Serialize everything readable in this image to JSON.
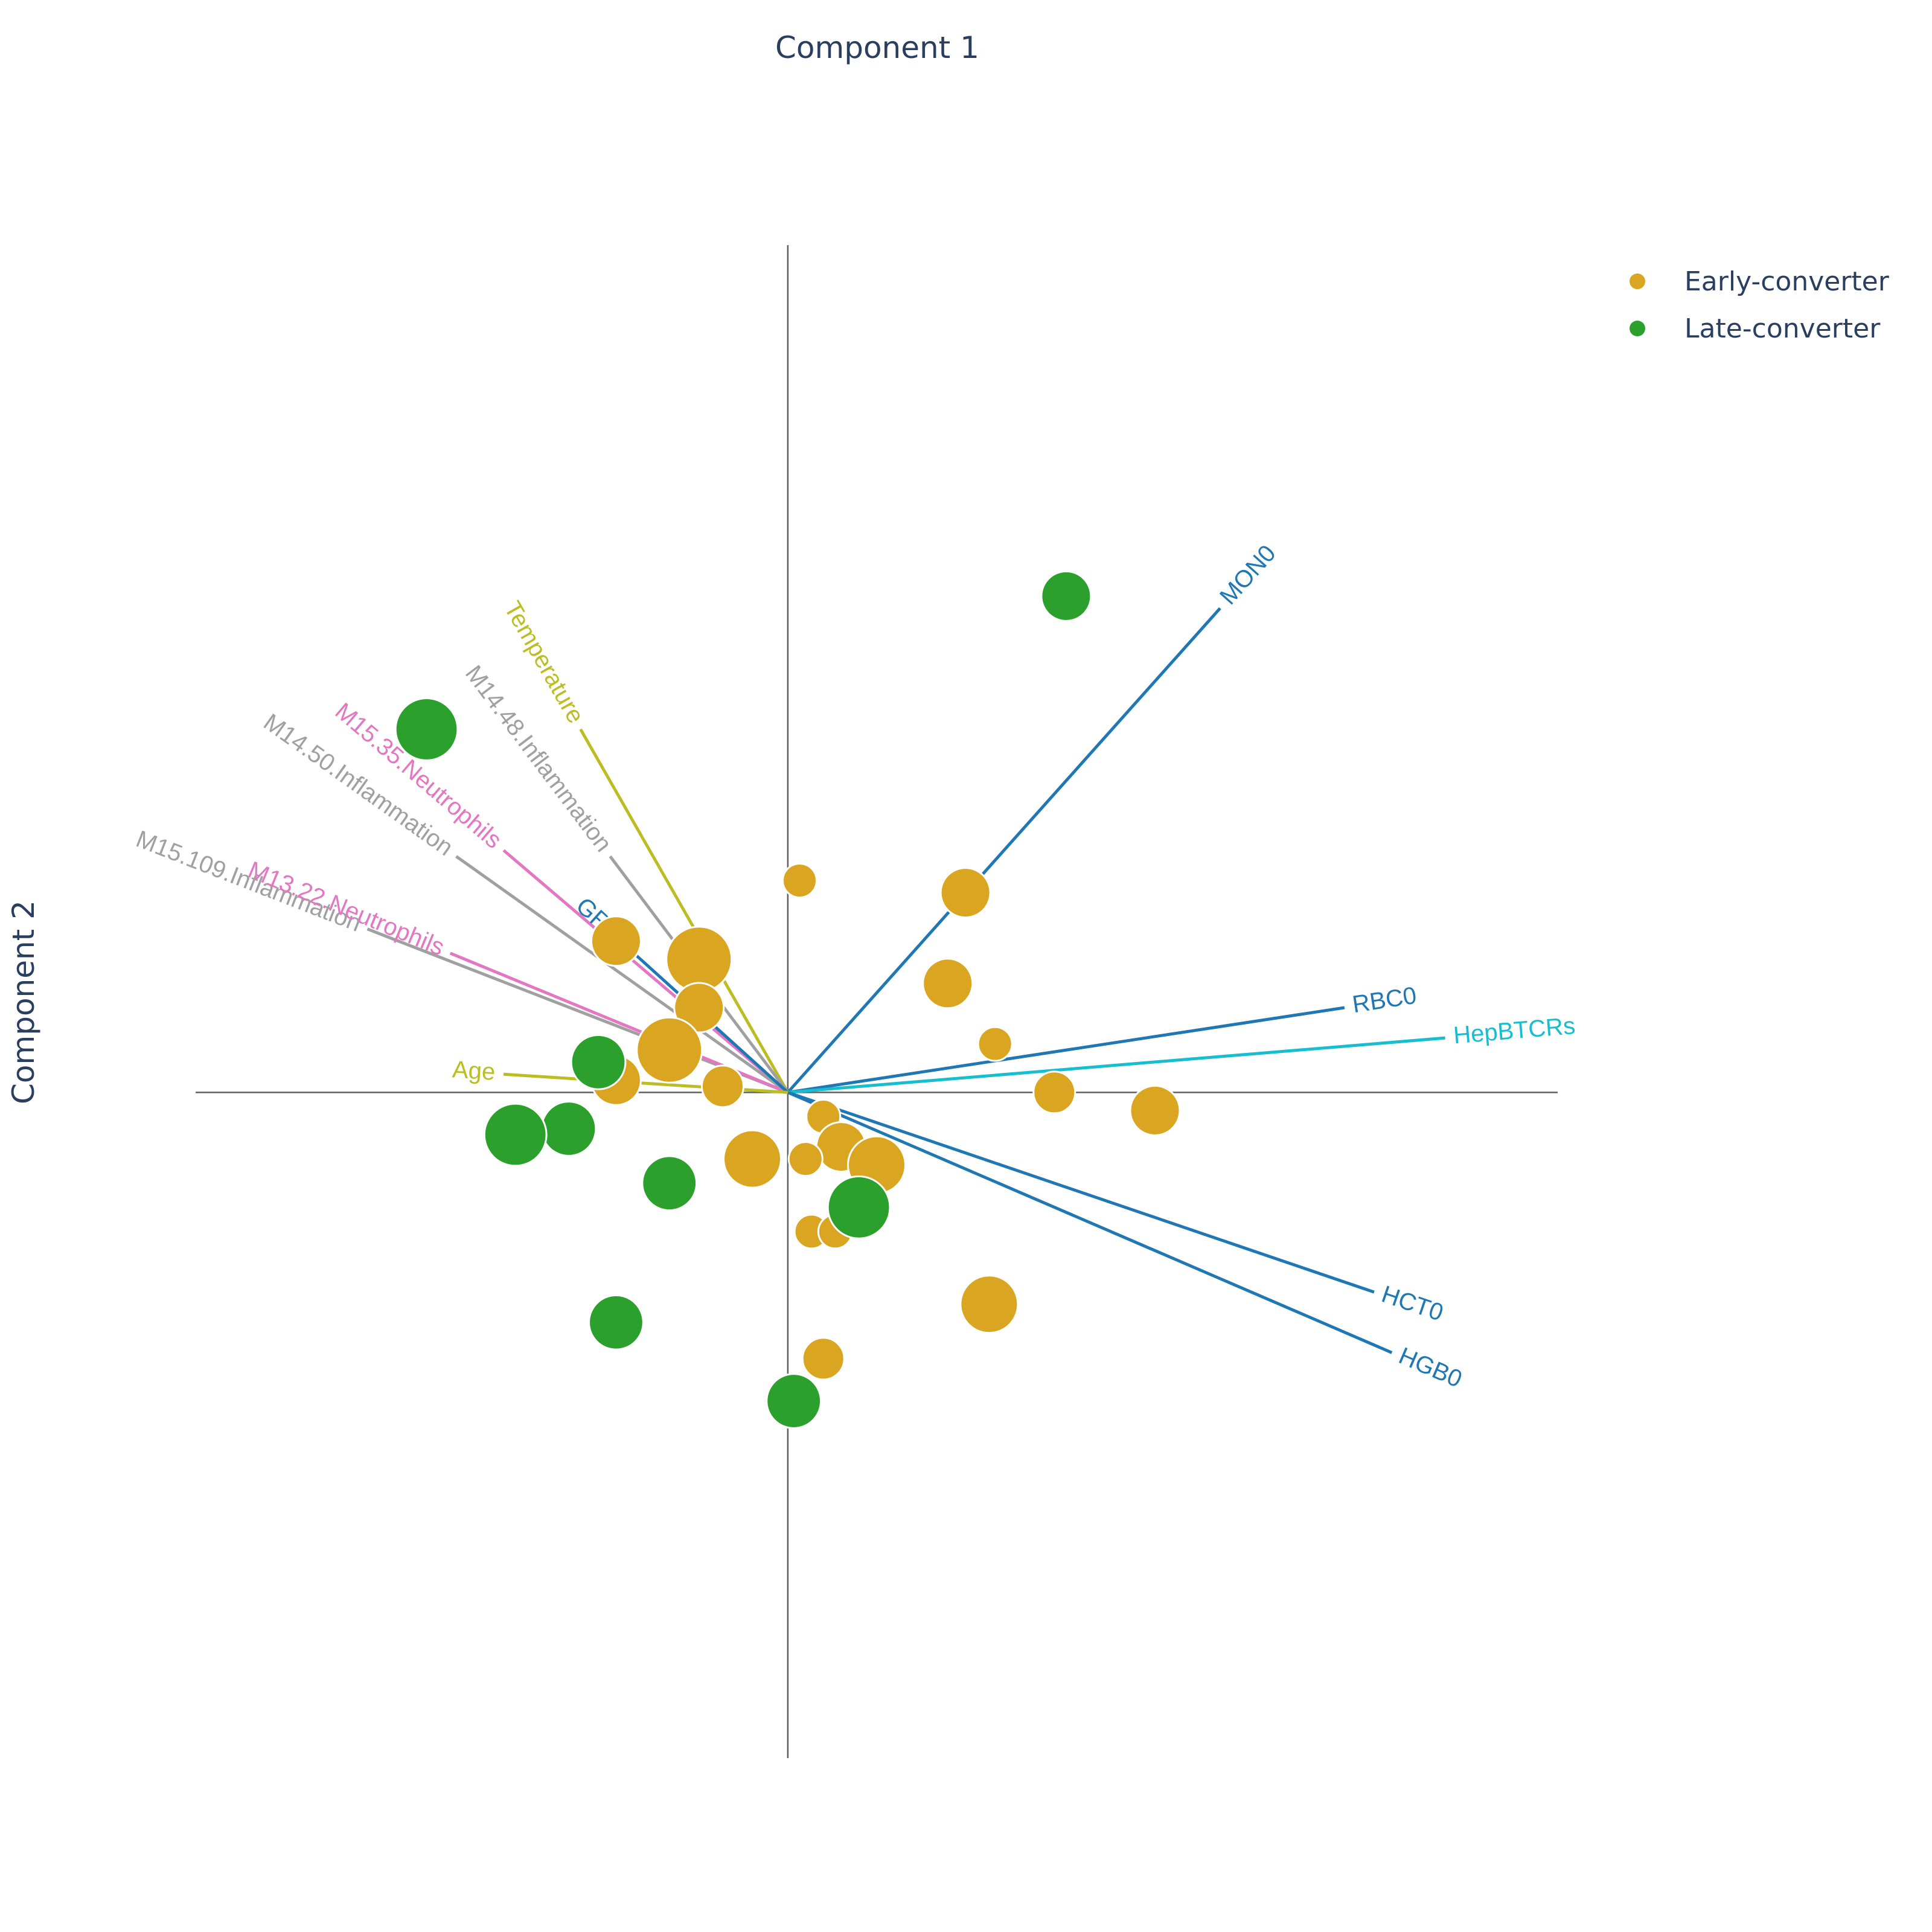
{
  "chart_data": {
    "type": "scatter",
    "xlabel": "Component 1",
    "ylabel": "Component 2",
    "xlim": [
      -1.0,
      1.3
    ],
    "ylim": [
      -1.1,
      1.4
    ],
    "legend_position": "top-right",
    "series": [
      {
        "name": "Early-converter",
        "color": "#DAA520",
        "points": [
          {
            "x": 0.02,
            "y": 0.35,
            "size": 1
          },
          {
            "x": 0.3,
            "y": 0.33,
            "size": 2
          },
          {
            "x": -0.29,
            "y": 0.25,
            "size": 2
          },
          {
            "x": -0.15,
            "y": 0.22,
            "size": 3
          },
          {
            "x": 0.27,
            "y": 0.18,
            "size": 2
          },
          {
            "x": -0.15,
            "y": 0.14,
            "size": 2
          },
          {
            "x": 0.35,
            "y": 0.08,
            "size": 1
          },
          {
            "x": -0.2,
            "y": 0.07,
            "size": 3
          },
          {
            "x": -0.29,
            "y": 0.02,
            "size": 2
          },
          {
            "x": -0.11,
            "y": 0.01,
            "size": 1.5
          },
          {
            "x": 0.45,
            "y": 0.0,
            "size": 1.5
          },
          {
            "x": 0.62,
            "y": -0.03,
            "size": 2
          },
          {
            "x": 0.06,
            "y": -0.04,
            "size": 1
          },
          {
            "x": 0.09,
            "y": -0.09,
            "size": 2
          },
          {
            "x": 0.03,
            "y": -0.11,
            "size": 1
          },
          {
            "x": -0.06,
            "y": -0.11,
            "size": 2.5
          },
          {
            "x": 0.15,
            "y": -0.12,
            "size": 2.5
          },
          {
            "x": 0.04,
            "y": -0.23,
            "size": 1
          },
          {
            "x": 0.08,
            "y": -0.23,
            "size": 1
          },
          {
            "x": 0.34,
            "y": -0.35,
            "size": 2.5
          },
          {
            "x": 0.06,
            "y": -0.44,
            "size": 1.5
          }
        ]
      },
      {
        "name": "Late-converter",
        "color": "#2CA02C",
        "points": [
          {
            "x": 0.47,
            "y": 0.82,
            "size": 2
          },
          {
            "x": -0.61,
            "y": 0.6,
            "size": 2.8
          },
          {
            "x": -0.32,
            "y": 0.05,
            "size": 2.3
          },
          {
            "x": -0.37,
            "y": -0.06,
            "size": 2.3
          },
          {
            "x": -0.46,
            "y": -0.07,
            "size": 2.8
          },
          {
            "x": -0.2,
            "y": -0.15,
            "size": 2.3
          },
          {
            "x": 0.12,
            "y": -0.19,
            "size": 2.8
          },
          {
            "x": -0.29,
            "y": -0.38,
            "size": 2.3
          },
          {
            "x": 0.01,
            "y": -0.51,
            "size": 2.3
          }
        ]
      }
    ],
    "loadings": [
      {
        "label": "MON0",
        "x": 0.73,
        "y": 0.8,
        "color": "#1F77B4"
      },
      {
        "label": "RBC0",
        "x": 0.94,
        "y": 0.14,
        "color": "#1F77B4"
      },
      {
        "label": "HepBTCRs",
        "x": 1.11,
        "y": 0.09,
        "color": "#17BECF"
      },
      {
        "label": "HCT0",
        "x": 0.99,
        "y": -0.33,
        "color": "#1F77B4"
      },
      {
        "label": "HGB0",
        "x": 1.02,
        "y": -0.43,
        "color": "#1F77B4"
      },
      {
        "label": "Temperature",
        "x": -0.35,
        "y": 0.6,
        "color": "#BCBD22"
      },
      {
        "label": "M14.48.Inflammation",
        "x": -0.3,
        "y": 0.39,
        "color": "#A0A0A0"
      },
      {
        "label": "M15.35.Neutrophils",
        "x": -0.48,
        "y": 0.4,
        "color": "#E377C2"
      },
      {
        "label": "M14.50.Inflammation",
        "x": -0.56,
        "y": 0.39,
        "color": "#A0A0A0"
      },
      {
        "label": "M15.109.Inflammation",
        "x": -0.71,
        "y": 0.27,
        "color": "#A0A0A0"
      },
      {
        "label": "M13.22.Neutrophils",
        "x": -0.57,
        "y": 0.23,
        "color": "#E377C2"
      },
      {
        "label": "GRA0",
        "x": -0.26,
        "y": 0.23,
        "color": "#1F77B4"
      },
      {
        "label": "Age",
        "x": -0.48,
        "y": 0.03,
        "color": "#BCBD22"
      }
    ]
  }
}
